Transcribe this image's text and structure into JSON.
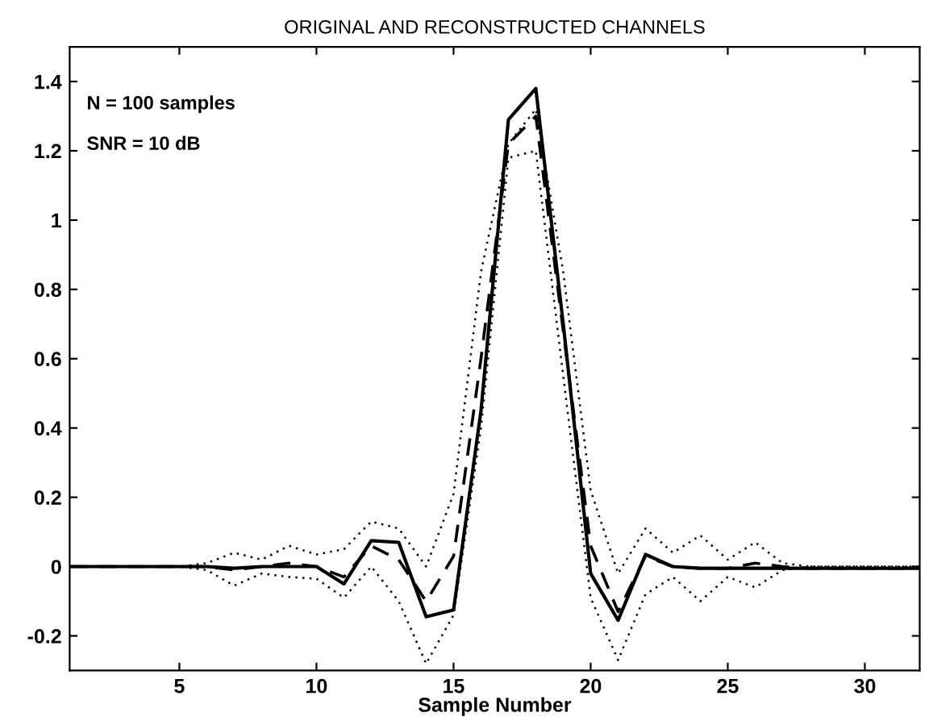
{
  "chart_data": {
    "type": "line",
    "title": "ORIGINAL AND RECONSTRUCTED CHANNELS",
    "xlabel": "Sample Number",
    "x": [
      1,
      2,
      3,
      4,
      5,
      6,
      7,
      8,
      9,
      10,
      11,
      12,
      13,
      14,
      15,
      16,
      17,
      18,
      19,
      20,
      21,
      22,
      23,
      24,
      25,
      26,
      27,
      28,
      29,
      30,
      31,
      32
    ],
    "series": [
      {
        "color": "#000000",
        "line_style": "solid",
        "values": [
          0,
          0,
          0,
          0,
          0,
          0,
          -0.005,
          0,
          0,
          0,
          -0.05,
          0.075,
          0.07,
          -0.145,
          -0.125,
          0.45,
          1.29,
          1.38,
          0.7,
          -0.02,
          -0.155,
          0.035,
          0,
          -0.005,
          -0.005,
          -0.005,
          -0.005,
          -0.005,
          -0.005,
          -0.005,
          -0.005,
          -0.005
        ]
      },
      {
        "color": "#000000",
        "line_style": "dashed",
        "values": [
          0,
          0,
          0,
          0,
          0,
          0,
          -0.01,
          0,
          0.01,
          0,
          -0.03,
          0.06,
          0.02,
          -0.1,
          0.03,
          0.6,
          1.22,
          1.3,
          0.68,
          0.06,
          -0.13,
          0.03,
          0,
          -0.005,
          -0.005,
          0.01,
          0,
          -0.005,
          -0.005,
          -0.005,
          -0.005,
          -0.005
        ]
      },
      {
        "color": "#000000",
        "line_style": "dotted",
        "values": [
          0,
          0,
          0,
          0,
          0,
          0.01,
          0.04,
          0.02,
          0.06,
          0.035,
          0.05,
          0.13,
          0.11,
          0,
          0.21,
          0.85,
          1.22,
          1.32,
          0.85,
          0.22,
          -0.02,
          0.11,
          0.04,
          0.09,
          0.02,
          0.07,
          0.01,
          0,
          0,
          0,
          0,
          0
        ]
      },
      {
        "color": "#000000",
        "line_style": "dotted",
        "values": [
          0,
          0,
          0,
          0,
          0,
          -0.01,
          -0.055,
          -0.02,
          -0.03,
          -0.035,
          -0.09,
          0,
          -0.1,
          -0.28,
          -0.14,
          0.4,
          1.18,
          1.2,
          0.55,
          -0.09,
          -0.27,
          -0.08,
          -0.03,
          -0.1,
          -0.03,
          -0.06,
          -0.01,
          0,
          0,
          0,
          0,
          0
        ]
      }
    ],
    "annotations": [
      "N = 100 samples",
      "SNR = 10 dB"
    ],
    "xlim": [
      1,
      32
    ],
    "ylim": [
      -0.3,
      1.5
    ],
    "xticks": [
      5,
      10,
      15,
      20,
      25,
      30
    ],
    "yticks": [
      -0.2,
      0,
      0.2,
      0.4,
      0.6,
      0.8,
      1,
      1.2,
      1.4
    ],
    "grid": false,
    "legend": false
  }
}
